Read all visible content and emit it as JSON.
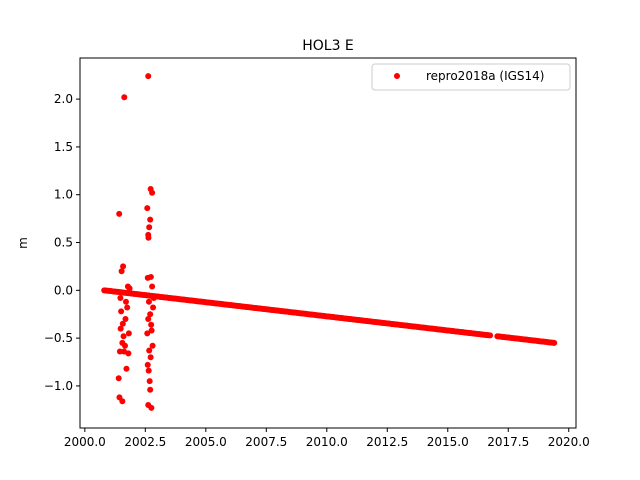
{
  "chart_data": {
    "type": "scatter",
    "title": "HOL3 E",
    "xlabel": "",
    "ylabel": "m",
    "xlim": [
      1999.8,
      2020.3
    ],
    "ylim": [
      -1.44,
      2.43
    ],
    "xticks": [
      2000.0,
      2002.5,
      2005.0,
      2007.5,
      2010.0,
      2012.5,
      2015.0,
      2017.5,
      2020.0
    ],
    "xtick_labels": [
      "2000.0",
      "2002.5",
      "2005.0",
      "2007.5",
      "2010.0",
      "2012.5",
      "2015.0",
      "2017.5",
      "2020.0"
    ],
    "yticks": [
      -1.0,
      -0.5,
      0.0,
      0.5,
      1.0,
      1.5,
      2.0
    ],
    "ytick_labels": [
      "−1.0",
      "−0.5",
      "0.0",
      "0.5",
      "1.0",
      "1.5",
      "2.0"
    ],
    "grid": false,
    "legend": {
      "position": "top-right",
      "entries": [
        "repro2018a (IGS14)"
      ]
    },
    "series": [
      {
        "name": "repro2018a (IGS14)",
        "color": "#ff0000",
        "marker": "circle",
        "trend": {
          "x_start": 2000.8,
          "y_start": 0.0,
          "x_end": 2019.4,
          "y_end": -0.55,
          "step": 0.05,
          "gaps": [
            [
              2016.75,
              2017.0
            ]
          ]
        },
        "points": [
          [
            2001.42,
            0.8
          ],
          [
            2001.63,
            2.02
          ],
          [
            2001.58,
            0.25
          ],
          [
            2001.52,
            0.2
          ],
          [
            2001.4,
            -0.92
          ],
          [
            2001.43,
            -1.12
          ],
          [
            2001.55,
            -1.16
          ],
          [
            2001.72,
            -0.82
          ],
          [
            2001.48,
            -0.4
          ],
          [
            2001.55,
            -0.55
          ],
          [
            2001.62,
            -0.64
          ],
          [
            2001.68,
            -0.3
          ],
          [
            2001.5,
            -0.22
          ],
          [
            2001.75,
            -0.18
          ],
          [
            2001.8,
            -0.66
          ],
          [
            2001.45,
            -0.64
          ],
          [
            2001.6,
            -0.48
          ],
          [
            2001.7,
            -0.12
          ],
          [
            2001.47,
            -0.08
          ],
          [
            2001.78,
            0.04
          ],
          [
            2001.82,
            -0.45
          ],
          [
            2001.85,
            0.02
          ],
          [
            2001.57,
            -0.35
          ],
          [
            2001.66,
            -0.58
          ],
          [
            2002.62,
            2.24
          ],
          [
            2002.72,
            1.06
          ],
          [
            2002.78,
            1.02
          ],
          [
            2002.58,
            0.86
          ],
          [
            2002.7,
            0.74
          ],
          [
            2002.66,
            0.66
          ],
          [
            2002.62,
            0.58
          ],
          [
            2002.63,
            0.55
          ],
          [
            2002.6,
            0.13
          ],
          [
            2002.73,
            0.14
          ],
          [
            2002.78,
            0.04
          ],
          [
            2002.68,
            -0.95
          ],
          [
            2002.62,
            -1.2
          ],
          [
            2002.75,
            -1.23
          ],
          [
            2002.7,
            -1.04
          ],
          [
            2002.64,
            -0.84
          ],
          [
            2002.6,
            -0.78
          ],
          [
            2002.72,
            -0.7
          ],
          [
            2002.66,
            -0.63
          ],
          [
            2002.8,
            -0.58
          ],
          [
            2002.58,
            -0.45
          ],
          [
            2002.76,
            -0.42
          ],
          [
            2002.62,
            -0.3
          ],
          [
            2002.7,
            -0.25
          ],
          [
            2002.82,
            -0.18
          ],
          [
            2002.65,
            -0.12
          ],
          [
            2002.74,
            -0.36
          ],
          [
            2002.85,
            -0.08
          ]
        ]
      }
    ]
  }
}
